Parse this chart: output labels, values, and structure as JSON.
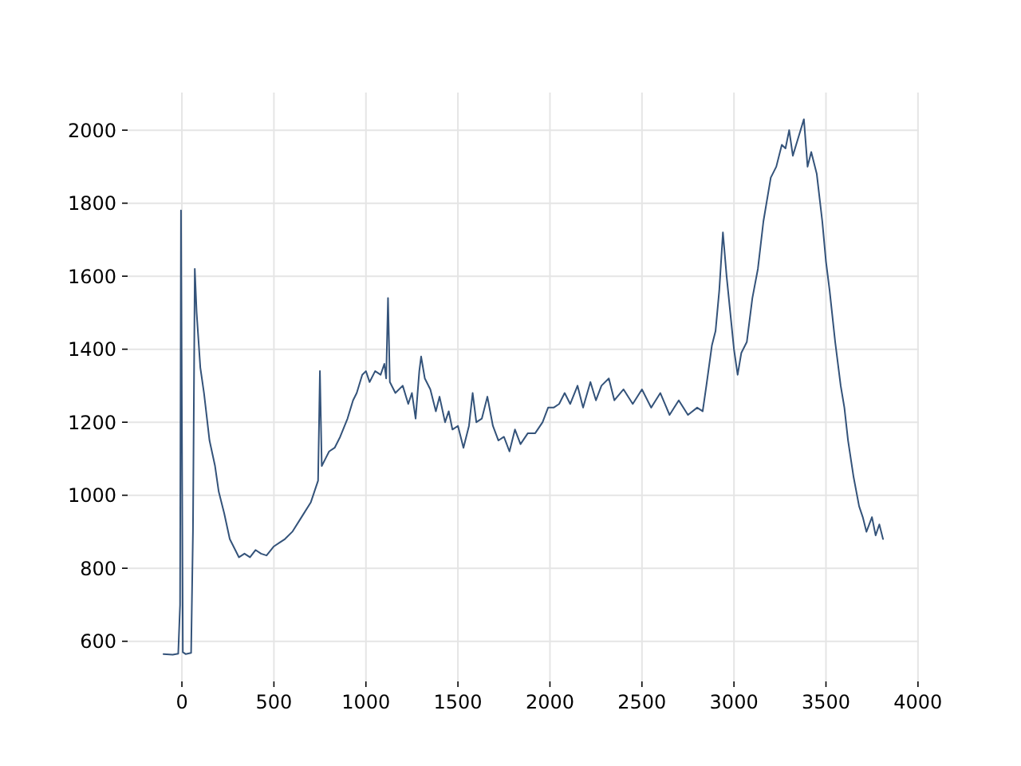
{
  "chart_data": {
    "type": "line",
    "xlim": [
      -295,
      4005
    ],
    "ylim": [
      490,
      2103
    ],
    "xticks": [
      0,
      500,
      1000,
      1500,
      2000,
      2500,
      3000,
      3500,
      4000
    ],
    "yticks": [
      600,
      800,
      1000,
      1200,
      1400,
      1600,
      1800,
      2000
    ],
    "grid": true,
    "series": [
      {
        "color": "#34537a",
        "x": [
          -100,
          -50,
          -20,
          -10,
          -5,
          0,
          5,
          20,
          50,
          60,
          70,
          80,
          100,
          120,
          150,
          180,
          200,
          230,
          260,
          290,
          310,
          340,
          370,
          400,
          430,
          460,
          500,
          530,
          560,
          600,
          650,
          700,
          720,
          740,
          750,
          760,
          780,
          800,
          830,
          860,
          900,
          930,
          950,
          980,
          1000,
          1020,
          1050,
          1080,
          1100,
          1110,
          1120,
          1130,
          1160,
          1200,
          1230,
          1250,
          1270,
          1290,
          1300,
          1320,
          1350,
          1380,
          1400,
          1430,
          1450,
          1470,
          1500,
          1530,
          1560,
          1580,
          1600,
          1630,
          1660,
          1690,
          1720,
          1750,
          1780,
          1810,
          1840,
          1880,
          1920,
          1960,
          1990,
          2020,
          2050,
          2080,
          2110,
          2150,
          2180,
          2220,
          2250,
          2280,
          2320,
          2350,
          2400,
          2450,
          2500,
          2550,
          2600,
          2650,
          2700,
          2750,
          2800,
          2830,
          2850,
          2880,
          2900,
          2920,
          2940,
          2960,
          2980,
          3000,
          3020,
          3040,
          3070,
          3100,
          3130,
          3160,
          3200,
          3230,
          3260,
          3280,
          3300,
          3320,
          3350,
          3380,
          3400,
          3420,
          3450,
          3480,
          3500,
          3520,
          3550,
          3580,
          3600,
          3620,
          3650,
          3680,
          3700,
          3720,
          3750,
          3770,
          3790,
          3810
        ],
        "values": [
          565,
          563,
          566,
          700,
          1780,
          1200,
          570,
          565,
          568,
          900,
          1620,
          1500,
          1350,
          1280,
          1150,
          1080,
          1010,
          950,
          880,
          850,
          830,
          840,
          830,
          850,
          840,
          835,
          860,
          870,
          880,
          900,
          940,
          980,
          1010,
          1040,
          1340,
          1080,
          1100,
          1120,
          1130,
          1160,
          1210,
          1260,
          1280,
          1330,
          1340,
          1310,
          1340,
          1330,
          1360,
          1320,
          1540,
          1310,
          1280,
          1300,
          1250,
          1280,
          1210,
          1340,
          1380,
          1320,
          1290,
          1230,
          1270,
          1200,
          1230,
          1180,
          1190,
          1130,
          1190,
          1280,
          1200,
          1210,
          1270,
          1190,
          1150,
          1160,
          1120,
          1180,
          1140,
          1170,
          1170,
          1200,
          1240,
          1240,
          1250,
          1280,
          1250,
          1300,
          1240,
          1310,
          1260,
          1300,
          1320,
          1260,
          1290,
          1250,
          1290,
          1240,
          1280,
          1220,
          1260,
          1220,
          1240,
          1230,
          1300,
          1410,
          1450,
          1560,
          1720,
          1600,
          1500,
          1400,
          1330,
          1390,
          1420,
          1540,
          1620,
          1750,
          1870,
          1900,
          1960,
          1950,
          2000,
          1930,
          1980,
          2030,
          1900,
          1940,
          1880,
          1750,
          1640,
          1560,
          1420,
          1300,
          1240,
          1150,
          1050,
          970,
          940,
          900,
          940,
          890,
          920,
          880
        ]
      }
    ]
  }
}
